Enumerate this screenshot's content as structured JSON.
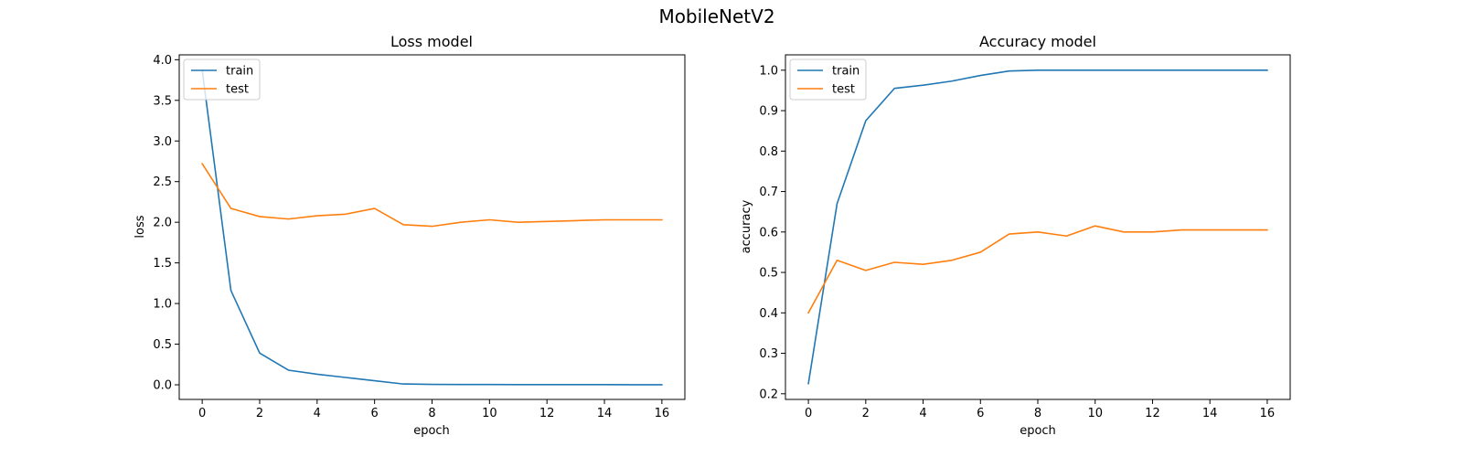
{
  "figure": {
    "suptitle": "MobileNetV2"
  },
  "colors": {
    "train": "#1f77b4",
    "test": "#ff7f0e"
  },
  "chart_data": [
    {
      "type": "line",
      "title": "Loss model",
      "xlabel": "epoch",
      "ylabel": "loss",
      "x": [
        0,
        1,
        2,
        3,
        4,
        5,
        6,
        7,
        8,
        9,
        10,
        11,
        12,
        13,
        14,
        15,
        16
      ],
      "xlim": [
        -0.8,
        16.8
      ],
      "ylim": [
        -0.18,
        4.06
      ],
      "xticks": [
        0,
        2,
        4,
        6,
        8,
        10,
        12,
        14,
        16
      ],
      "yticks": [
        0.0,
        0.5,
        1.0,
        1.5,
        2.0,
        2.5,
        3.0,
        3.5,
        4.0
      ],
      "ytick_decimals": 1,
      "legend_position": "upper left",
      "grid": false,
      "series": [
        {
          "name": "train",
          "color": "#1f77b4",
          "values": [
            3.87,
            1.16,
            0.39,
            0.18,
            0.13,
            0.09,
            0.05,
            0.01,
            0.005,
            0.003,
            0.003,
            0.002,
            0.002,
            0.002,
            0.002,
            0.001,
            0.001
          ]
        },
        {
          "name": "test",
          "color": "#ff7f0e",
          "values": [
            2.72,
            2.17,
            2.07,
            2.04,
            2.08,
            2.1,
            2.17,
            1.97,
            1.95,
            2.0,
            2.03,
            2.0,
            2.01,
            2.02,
            2.03,
            2.03,
            2.03
          ]
        }
      ]
    },
    {
      "type": "line",
      "title": "Accuracy model",
      "xlabel": "epoch",
      "ylabel": "accuracy",
      "x": [
        0,
        1,
        2,
        3,
        4,
        5,
        6,
        7,
        8,
        9,
        10,
        11,
        12,
        13,
        14,
        15,
        16
      ],
      "xlim": [
        -0.8,
        16.8
      ],
      "ylim": [
        0.186,
        1.038
      ],
      "xticks": [
        0,
        2,
        4,
        6,
        8,
        10,
        12,
        14,
        16
      ],
      "yticks": [
        0.2,
        0.3,
        0.4,
        0.5,
        0.6,
        0.7,
        0.8,
        0.9,
        1.0
      ],
      "ytick_decimals": 1,
      "legend_position": "upper left",
      "grid": false,
      "series": [
        {
          "name": "train",
          "color": "#1f77b4",
          "values": [
            0.225,
            0.67,
            0.875,
            0.955,
            0.963,
            0.973,
            0.987,
            0.998,
            1.0,
            1.0,
            1.0,
            1.0,
            1.0,
            1.0,
            1.0,
            1.0,
            1.0
          ]
        },
        {
          "name": "test",
          "color": "#ff7f0e",
          "values": [
            0.4,
            0.53,
            0.505,
            0.525,
            0.52,
            0.53,
            0.55,
            0.595,
            0.6,
            0.59,
            0.615,
            0.6,
            0.6,
            0.605,
            0.605,
            0.605,
            0.605
          ]
        }
      ]
    }
  ]
}
